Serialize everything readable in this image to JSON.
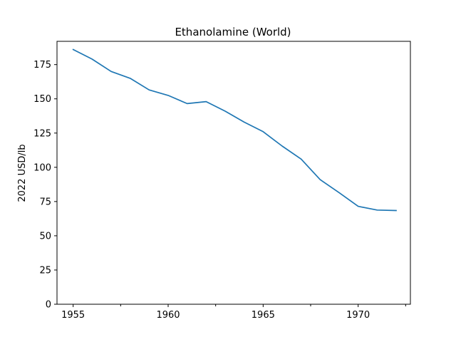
{
  "chart_data": {
    "type": "line",
    "title": "Ethanolamine (World)",
    "xlabel": "",
    "ylabel": "2022 USD/lb",
    "xlim": [
      1954.15,
      1972.75
    ],
    "ylim": [
      0,
      192
    ],
    "x_ticks": [
      1955,
      1960,
      1965,
      1970
    ],
    "x_minor_ticks": [
      1957.5,
      1962.5,
      1967.5,
      1972.5
    ],
    "y_ticks": [
      0,
      25,
      50,
      75,
      100,
      125,
      150,
      175
    ],
    "grid": false,
    "line_color": "#1f77b4",
    "series": [
      {
        "x": [
          1955,
          1956,
          1957,
          1958,
          1959,
          1960,
          1961,
          1962,
          1963,
          1964,
          1965,
          1966,
          1967,
          1968,
          1969,
          1970,
          1971,
          1972
        ],
        "values": [
          186,
          179,
          170,
          165,
          156.5,
          152.5,
          146.5,
          148,
          141,
          133,
          126,
          115.5,
          106,
          91,
          81.5,
          71.5,
          68.8,
          68.4
        ]
      }
    ]
  }
}
